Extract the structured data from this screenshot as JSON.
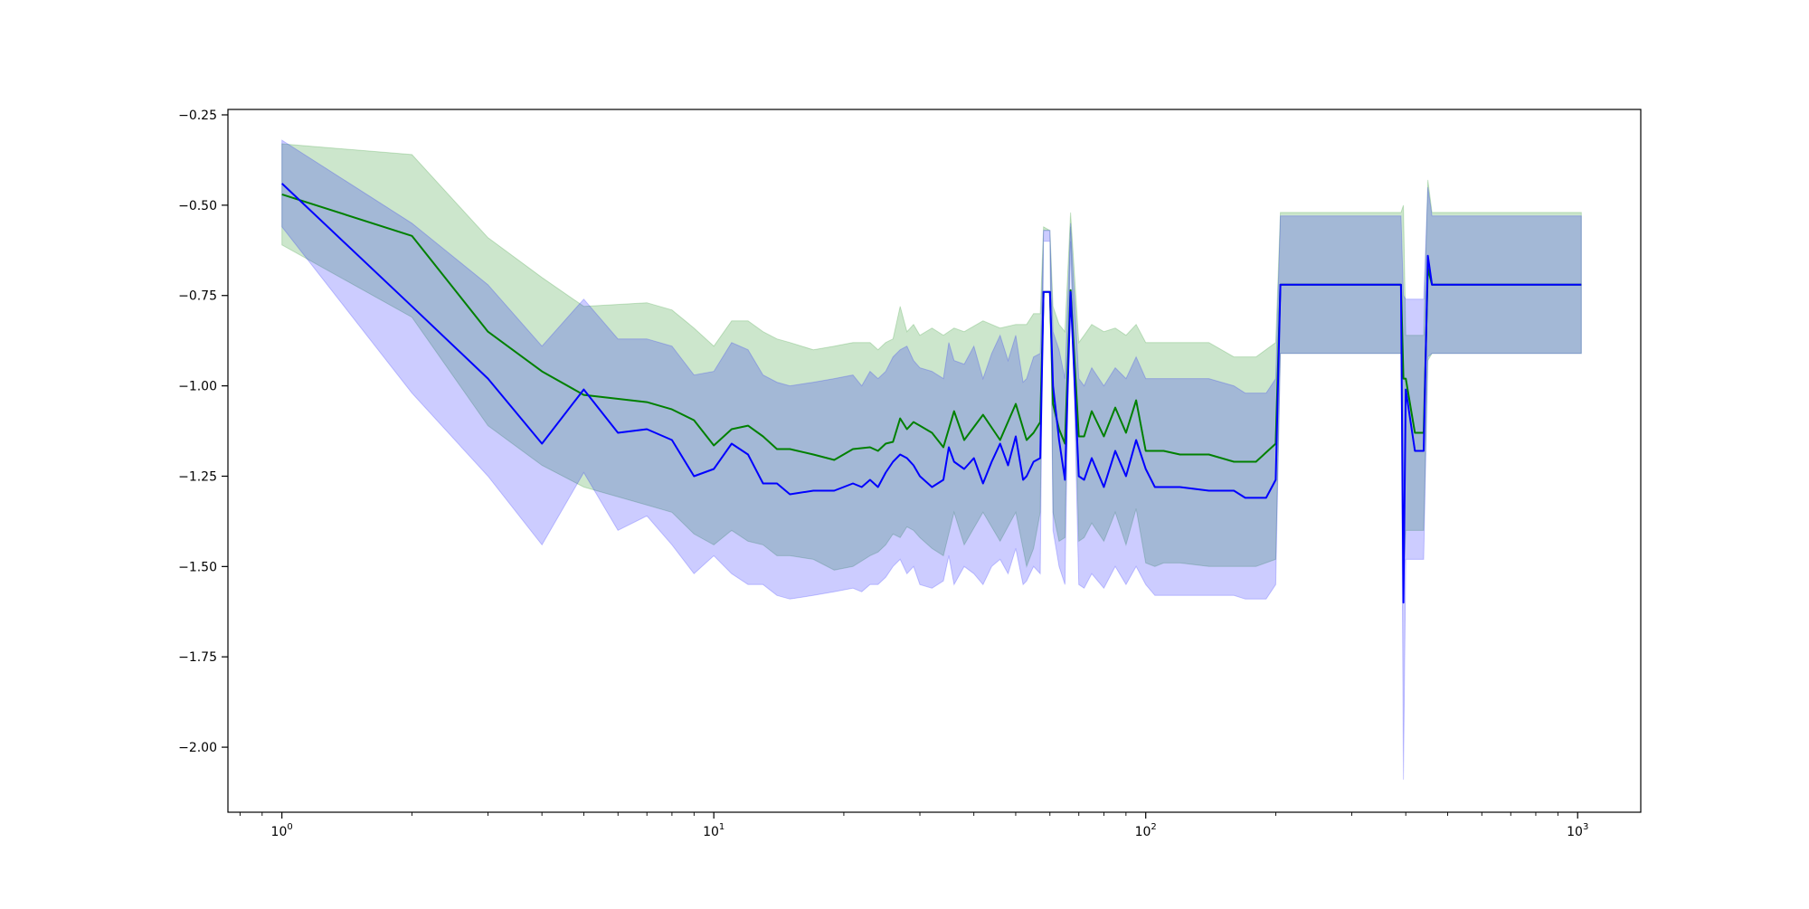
{
  "chart_data": {
    "type": "line",
    "title": "",
    "xlabel": "",
    "ylabel": "",
    "x_scale": "log",
    "xlim": [
      0.75,
      1400
    ],
    "ylim": [
      -2.18,
      -0.235
    ],
    "grid": false,
    "x_ticks": [
      {
        "value": 1,
        "base": "10",
        "exp": "0"
      },
      {
        "value": 10,
        "base": "10",
        "exp": "1"
      },
      {
        "value": 100,
        "base": "10",
        "exp": "2"
      },
      {
        "value": 1000,
        "base": "10",
        "exp": "3"
      }
    ],
    "y_ticks": [
      {
        "value": -0.25,
        "label": "−0.25"
      },
      {
        "value": -0.5,
        "label": "−0.50"
      },
      {
        "value": -0.75,
        "label": "−0.75"
      },
      {
        "value": -1.0,
        "label": "−1.00"
      },
      {
        "value": -1.25,
        "label": "−1.25"
      },
      {
        "value": -1.5,
        "label": "−1.50"
      },
      {
        "value": -1.75,
        "label": "−1.75"
      },
      {
        "value": -2.0,
        "label": "−2.00"
      }
    ],
    "series": [
      {
        "color": "#008000",
        "band_color": "#008000",
        "band_opacity": 0.2,
        "x": [
          1,
          2,
          3,
          4,
          5,
          7,
          8,
          9,
          10,
          11,
          12,
          13,
          14,
          15,
          17,
          19,
          21,
          23,
          24,
          25,
          26,
          27,
          28,
          29,
          30,
          32,
          34,
          36,
          38,
          42,
          46,
          50,
          53,
          55,
          57,
          58,
          60,
          61,
          63,
          65,
          67,
          70,
          72,
          75,
          80,
          85,
          90,
          95,
          100,
          105,
          110,
          120,
          140,
          160,
          180,
          200,
          205,
          390,
          395,
          400,
          420,
          440,
          450,
          460,
          1020
        ],
        "y": [
          -0.47,
          -0.585,
          -0.85,
          -0.96,
          -1.025,
          -1.045,
          -1.065,
          -1.095,
          -1.165,
          -1.12,
          -1.11,
          -1.14,
          -1.175,
          -1.175,
          -1.19,
          -1.205,
          -1.175,
          -1.17,
          -1.18,
          -1.16,
          -1.155,
          -1.09,
          -1.12,
          -1.1,
          -1.11,
          -1.13,
          -1.17,
          -1.07,
          -1.15,
          -1.08,
          -1.15,
          -1.05,
          -1.15,
          -1.13,
          -1.1,
          -0.74,
          -0.74,
          -1.05,
          -1.12,
          -1.16,
          -0.735,
          -1.14,
          -1.14,
          -1.07,
          -1.14,
          -1.06,
          -1.13,
          -1.04,
          -1.18,
          -1.18,
          -1.18,
          -1.19,
          -1.19,
          -1.21,
          -1.21,
          -1.16,
          -0.72,
          -0.72,
          -0.98,
          -0.98,
          -1.13,
          -1.13,
          -0.675,
          -0.72,
          -0.72
        ],
        "lower": [
          -0.61,
          -0.81,
          -1.11,
          -1.22,
          -1.28,
          -1.33,
          -1.35,
          -1.41,
          -1.44,
          -1.4,
          -1.43,
          -1.44,
          -1.47,
          -1.47,
          -1.48,
          -1.51,
          -1.5,
          -1.47,
          -1.46,
          -1.44,
          -1.41,
          -1.42,
          -1.39,
          -1.4,
          -1.42,
          -1.45,
          -1.47,
          -1.35,
          -1.44,
          -1.35,
          -1.43,
          -1.35,
          -1.5,
          -1.45,
          -1.35,
          -0.57,
          -0.57,
          -1.35,
          -1.43,
          -1.42,
          -0.56,
          -1.43,
          -1.42,
          -1.38,
          -1.43,
          -1.35,
          -1.44,
          -1.34,
          -1.49,
          -1.5,
          -1.49,
          -1.49,
          -1.5,
          -1.5,
          -1.5,
          -1.48,
          -0.91,
          -0.91,
          -1.55,
          -1.4,
          -1.4,
          -1.4,
          -0.93,
          -0.91,
          -0.91
        ],
        "upper": [
          -0.33,
          -0.36,
          -0.59,
          -0.7,
          -0.78,
          -0.77,
          -0.79,
          -0.84,
          -0.89,
          -0.82,
          -0.82,
          -0.85,
          -0.87,
          -0.88,
          -0.9,
          -0.89,
          -0.88,
          -0.88,
          -0.9,
          -0.88,
          -0.87,
          -0.78,
          -0.85,
          -0.83,
          -0.86,
          -0.84,
          -0.86,
          -0.84,
          -0.85,
          -0.82,
          -0.84,
          -0.83,
          -0.83,
          -0.8,
          -0.8,
          -0.56,
          -0.57,
          -0.78,
          -0.83,
          -0.85,
          -0.52,
          -0.88,
          -0.86,
          -0.83,
          -0.85,
          -0.84,
          -0.86,
          -0.83,
          -0.88,
          -0.88,
          -0.88,
          -0.88,
          -0.88,
          -0.92,
          -0.92,
          -0.88,
          -0.52,
          -0.52,
          -0.5,
          -0.86,
          -0.86,
          -0.86,
          -0.43,
          -0.52,
          -0.52
        ]
      },
      {
        "color": "#0000ff",
        "band_color": "#0000ff",
        "band_opacity": 0.2,
        "x": [
          1,
          2,
          3,
          4,
          5,
          6,
          7,
          8,
          9,
          10,
          11,
          12,
          13,
          14,
          15,
          17,
          19,
          21,
          22,
          23,
          24,
          25,
          26,
          27,
          28,
          29,
          30,
          32,
          34,
          35,
          36,
          38,
          40,
          42,
          44,
          46,
          48,
          50,
          52,
          53,
          55,
          57,
          58,
          60,
          61,
          63,
          65,
          67,
          70,
          72,
          75,
          80,
          85,
          90,
          95,
          100,
          105,
          110,
          120,
          140,
          160,
          170,
          190,
          200,
          205,
          390,
          395,
          400,
          420,
          440,
          450,
          460,
          1020
        ],
        "y": [
          -0.44,
          -0.78,
          -0.98,
          -1.16,
          -1.01,
          -1.13,
          -1.12,
          -1.15,
          -1.25,
          -1.23,
          -1.16,
          -1.19,
          -1.27,
          -1.27,
          -1.3,
          -1.29,
          -1.29,
          -1.27,
          -1.28,
          -1.26,
          -1.28,
          -1.24,
          -1.21,
          -1.19,
          -1.2,
          -1.22,
          -1.25,
          -1.28,
          -1.26,
          -1.17,
          -1.21,
          -1.23,
          -1.2,
          -1.27,
          -1.21,
          -1.16,
          -1.22,
          -1.14,
          -1.26,
          -1.25,
          -1.21,
          -1.2,
          -0.74,
          -0.74,
          -1.0,
          -1.15,
          -1.26,
          -0.74,
          -1.25,
          -1.26,
          -1.2,
          -1.28,
          -1.18,
          -1.25,
          -1.15,
          -1.23,
          -1.28,
          -1.28,
          -1.28,
          -1.29,
          -1.29,
          -1.31,
          -1.31,
          -1.26,
          -0.72,
          -0.72,
          -1.6,
          -1.01,
          -1.18,
          -1.18,
          -0.64,
          -0.72,
          -0.72
        ],
        "lower": [
          -0.56,
          -1.02,
          -1.25,
          -1.44,
          -1.24,
          -1.4,
          -1.36,
          -1.44,
          -1.52,
          -1.47,
          -1.52,
          -1.55,
          -1.55,
          -1.58,
          -1.59,
          -1.58,
          -1.57,
          -1.56,
          -1.57,
          -1.55,
          -1.55,
          -1.53,
          -1.5,
          -1.48,
          -1.52,
          -1.5,
          -1.55,
          -1.56,
          -1.54,
          -1.47,
          -1.55,
          -1.5,
          -1.52,
          -1.55,
          -1.5,
          -1.48,
          -1.52,
          -1.45,
          -1.55,
          -1.54,
          -1.5,
          -1.52,
          -0.6,
          -0.6,
          -1.4,
          -1.5,
          -1.55,
          -0.6,
          -1.55,
          -1.56,
          -1.52,
          -1.56,
          -1.5,
          -1.55,
          -1.5,
          -1.55,
          -1.58,
          -1.58,
          -1.58,
          -1.58,
          -1.58,
          -1.59,
          -1.59,
          -1.55,
          -0.91,
          -0.91,
          -2.09,
          -1.48,
          -1.48,
          -1.48,
          -0.92,
          -0.91,
          -0.91
        ],
        "upper": [
          -0.32,
          -0.55,
          -0.72,
          -0.89,
          -0.76,
          -0.87,
          -0.87,
          -0.89,
          -0.97,
          -0.96,
          -0.88,
          -0.9,
          -0.97,
          -0.99,
          -1.0,
          -0.99,
          -0.98,
          -0.97,
          -1.0,
          -0.96,
          -0.98,
          -0.96,
          -0.92,
          -0.9,
          -0.89,
          -0.93,
          -0.95,
          -0.96,
          -0.98,
          -0.88,
          -0.93,
          -0.94,
          -0.89,
          -0.98,
          -0.91,
          -0.86,
          -0.93,
          -0.86,
          -0.99,
          -0.98,
          -0.92,
          -0.91,
          -0.57,
          -0.57,
          -0.85,
          -0.9,
          -0.98,
          -0.55,
          -0.98,
          -1.0,
          -0.95,
          -1.0,
          -0.95,
          -0.98,
          -0.92,
          -0.98,
          -0.98,
          -0.98,
          -0.98,
          -0.98,
          -1.0,
          -1.02,
          -1.02,
          -0.98,
          -0.53,
          -0.53,
          -0.75,
          -0.76,
          -0.76,
          -0.76,
          -0.45,
          -0.53,
          -0.53
        ]
      }
    ]
  }
}
